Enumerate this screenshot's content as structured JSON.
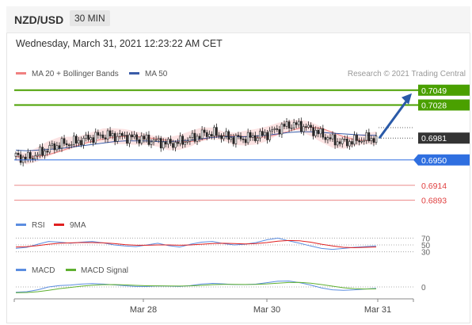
{
  "header": {
    "pair": "NZD/USD",
    "timeframe": "30 MIN"
  },
  "timestamp": "Wednesday, March 31, 2021 12:23:22 AM CET",
  "legend": {
    "ma20": "MA 20 + Bollinger Bands",
    "ma50": "MA 50",
    "credit": "Research © 2021 Trading Central",
    "rsi": "RSI",
    "rsi_ma": "9MA",
    "macd": "MACD",
    "macd_signal": "MACD Signal"
  },
  "colors": {
    "ma20": "#f08080",
    "ma50": "#3a5ca8",
    "resistance": "#4aa000",
    "support": "#2f6fe0",
    "red_level": "#e04040",
    "price": "#333333",
    "arrow": "#2a5aa8",
    "macd_line": "#5b8de0",
    "macd_signal": "#5fb030"
  },
  "chart_data": [
    {
      "type": "line",
      "title": "NZD/USD 30 MIN",
      "x_ticks": [
        "Mar 28",
        "Mar 30",
        "Mar 31"
      ],
      "ylim": [
        0.688,
        0.706
      ],
      "series": [
        {
          "name": "Price",
          "values": [
            0.6955,
            0.6952,
            0.6958,
            0.6966,
            0.6972,
            0.6974,
            0.6978,
            0.6982,
            0.6985,
            0.6984,
            0.6983,
            0.6981,
            0.6979,
            0.6976,
            0.6973,
            0.6975,
            0.698,
            0.6986,
            0.6988,
            0.6984,
            0.698,
            0.6981,
            0.6983,
            0.6987,
            0.6994,
            0.7,
            0.6999,
            0.6994,
            0.6986,
            0.6978,
            0.6975,
            0.6977,
            0.698,
            0.6981
          ]
        },
        {
          "name": "MA 50",
          "values": [
            0.6964,
            0.6963,
            0.6964,
            0.6965,
            0.6966,
            0.6968,
            0.697,
            0.6972,
            0.6974,
            0.6976,
            0.6977,
            0.6977,
            0.6977,
            0.6976,
            0.6976,
            0.6977,
            0.6978,
            0.698,
            0.6982,
            0.6983,
            0.6983,
            0.6983,
            0.6984,
            0.6985,
            0.6987,
            0.6989,
            0.699,
            0.699,
            0.6989,
            0.6988,
            0.6987,
            0.6986,
            0.6985,
            0.6985
          ]
        }
      ],
      "levels": [
        {
          "label": "0.7049",
          "value": 0.7049,
          "kind": "resistance"
        },
        {
          "label": "0.7028",
          "value": 0.7028,
          "kind": "resistance"
        },
        {
          "label": "0.6981",
          "value": 0.6981,
          "kind": "price"
        },
        {
          "label": "0.6950",
          "value": 0.695,
          "kind": "support"
        },
        {
          "label": "0.6914",
          "value": 0.6914,
          "kind": "red"
        },
        {
          "label": "0.6893",
          "value": 0.6893,
          "kind": "red"
        }
      ]
    },
    {
      "type": "line",
      "title": "RSI",
      "y_ticks": [
        "70",
        "50",
        "30"
      ],
      "ylim": [
        20,
        80
      ],
      "series": [
        {
          "name": "RSI",
          "values": [
            40,
            43,
            52,
            60,
            58,
            55,
            58,
            60,
            56,
            50,
            47,
            45,
            50,
            55,
            48,
            44,
            52,
            58,
            60,
            54,
            50,
            52,
            57,
            65,
            70,
            62,
            55,
            47,
            40,
            37,
            40,
            43,
            45,
            47
          ]
        },
        {
          "name": "9MA",
          "values": [
            44,
            45,
            48,
            52,
            55,
            56,
            57,
            57,
            56,
            54,
            51,
            49,
            49,
            50,
            50,
            49,
            50,
            52,
            54,
            55,
            54,
            53,
            54,
            57,
            61,
            63,
            62,
            58,
            52,
            47,
            43,
            42,
            43,
            44
          ]
        }
      ]
    },
    {
      "type": "line",
      "title": "MACD",
      "y_ticks": [
        "0"
      ],
      "ylim": [
        -1,
        1
      ],
      "series": [
        {
          "name": "MACD",
          "values": [
            -0.55,
            -0.5,
            -0.3,
            0.0,
            0.15,
            0.2,
            0.3,
            0.35,
            0.3,
            0.22,
            0.12,
            0.05,
            0.05,
            0.1,
            0.08,
            0.05,
            0.15,
            0.3,
            0.38,
            0.32,
            0.25,
            0.25,
            0.3,
            0.45,
            0.6,
            0.62,
            0.45,
            0.2,
            -0.1,
            -0.3,
            -0.35,
            -0.3,
            -0.22,
            -0.15
          ]
        },
        {
          "name": "MACD Signal",
          "values": [
            -0.6,
            -0.58,
            -0.5,
            -0.35,
            -0.18,
            -0.05,
            0.08,
            0.18,
            0.24,
            0.25,
            0.22,
            0.17,
            0.13,
            0.11,
            0.1,
            0.09,
            0.11,
            0.17,
            0.24,
            0.27,
            0.27,
            0.26,
            0.27,
            0.32,
            0.4,
            0.47,
            0.48,
            0.4,
            0.25,
            0.08,
            -0.08,
            -0.18,
            -0.22,
            -0.2
          ]
        }
      ]
    }
  ]
}
